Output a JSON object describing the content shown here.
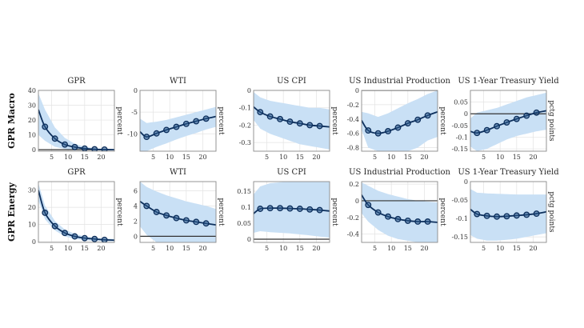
{
  "colors": {
    "band": "#c9e0f5",
    "line": "#0d2f5c",
    "grid": "#e3e3e3",
    "axis": "#8a8a8a",
    "zero_line": "#333333"
  },
  "chart_data": [
    {
      "type": "line",
      "row_label": "GPR Macro",
      "title": "GPR",
      "ylabel": "percent",
      "xlim": [
        1,
        24
      ],
      "xticks": [
        5,
        10,
        15,
        20
      ],
      "ylim": [
        -1,
        40
      ],
      "yticks": [
        0,
        10,
        20,
        30,
        40
      ],
      "grid": true,
      "zero_line": true,
      "x": [
        1,
        3,
        6,
        9,
        12,
        15,
        18,
        21,
        24
      ],
      "mean": [
        27,
        15.5,
        7.5,
        3.5,
        1.8,
        0.8,
        0.3,
        0.1,
        0
      ],
      "lower": [
        10,
        6,
        2,
        0.5,
        0,
        -0.3,
        -0.3,
        -0.3,
        -0.3
      ],
      "upper": [
        38,
        27,
        15,
        8,
        4,
        2,
        1,
        0.6,
        0.5
      ],
      "markers": [
        3,
        6,
        9,
        12,
        15,
        18,
        21
      ]
    },
    {
      "type": "line",
      "title": "WTI",
      "ylabel": "percent",
      "xlim": [
        1,
        24
      ],
      "xticks": [
        5,
        10,
        15,
        20
      ],
      "ylim": [
        -14,
        0
      ],
      "yticks": [
        -10,
        -5,
        0
      ],
      "grid": true,
      "zero_line": false,
      "x": [
        1,
        3,
        6,
        9,
        12,
        15,
        18,
        21,
        24
      ],
      "mean": [
        -9.5,
        -10.7,
        -9.9,
        -9.1,
        -8.4,
        -7.7,
        -7.1,
        -6.5,
        -6.0
      ],
      "lower": [
        -14,
        -14,
        -13,
        -12.2,
        -11.3,
        -10.5,
        -9.8,
        -9,
        -8.4
      ],
      "upper": [
        -6.5,
        -7.5,
        -7.2,
        -6.8,
        -6.2,
        -5.6,
        -5,
        -4.4,
        -3.8
      ],
      "markers": [
        3,
        6,
        9,
        12,
        15,
        18,
        21
      ]
    },
    {
      "type": "line",
      "title": "US CPI",
      "ylabel": "percent",
      "xlim": [
        1,
        24
      ],
      "xticks": [
        5,
        10,
        15,
        20
      ],
      "ylim": [
        -0.35,
        0
      ],
      "yticks": [
        -0.3,
        -0.2,
        -0.1,
        0
      ],
      "grid": true,
      "zero_line": false,
      "x": [
        1,
        3,
        6,
        9,
        12,
        15,
        18,
        21,
        24
      ],
      "mean": [
        -0.095,
        -0.125,
        -0.15,
        -0.165,
        -0.18,
        -0.19,
        -0.2,
        -0.205,
        -0.21
      ],
      "lower": [
        -0.17,
        -0.22,
        -0.25,
        -0.27,
        -0.29,
        -0.31,
        -0.32,
        -0.33,
        -0.34
      ],
      "upper": [
        -0.01,
        -0.04,
        -0.06,
        -0.07,
        -0.08,
        -0.09,
        -0.1,
        -0.1,
        -0.11
      ],
      "markers": [
        3,
        6,
        9,
        12,
        15,
        18,
        21
      ]
    },
    {
      "type": "line",
      "title": "US Industrial Production",
      "ylabel": "percent",
      "xlim": [
        1,
        24
      ],
      "xticks": [
        5,
        10,
        15,
        20
      ],
      "ylim": [
        -0.85,
        0
      ],
      "yticks": [
        -0.8,
        -0.6,
        -0.4,
        -0.2,
        0
      ],
      "grid": true,
      "zero_line": true,
      "x": [
        1,
        3,
        6,
        9,
        12,
        15,
        18,
        21,
        24
      ],
      "mean": [
        -0.42,
        -0.56,
        -0.6,
        -0.57,
        -0.52,
        -0.46,
        -0.41,
        -0.35,
        -0.3
      ],
      "lower": [
        -0.55,
        -0.8,
        -0.85,
        -0.85,
        -0.85,
        -0.85,
        -0.8,
        -0.7,
        -0.65
      ],
      "upper": [
        -0.3,
        -0.32,
        -0.37,
        -0.32,
        -0.25,
        -0.18,
        -0.12,
        -0.05,
        0
      ],
      "markers": [
        3,
        6,
        9,
        12,
        15,
        18,
        21
      ]
    },
    {
      "type": "line",
      "title": "US 1-Year Treasury Yield",
      "ylabel": "pctg points",
      "xlim": [
        1,
        24
      ],
      "xticks": [
        5,
        10,
        15,
        20
      ],
      "ylim": [
        -0.16,
        0.1
      ],
      "yticks": [
        -0.15,
        -0.1,
        -0.05,
        0,
        0.05
      ],
      "grid": true,
      "zero_line": true,
      "x": [
        1,
        3,
        6,
        9,
        12,
        15,
        18,
        21,
        24
      ],
      "mean": [
        -0.075,
        -0.082,
        -0.07,
        -0.053,
        -0.037,
        -0.022,
        -0.008,
        0.005,
        0.013
      ],
      "lower": [
        -0.14,
        -0.16,
        -0.15,
        -0.13,
        -0.11,
        -0.095,
        -0.085,
        -0.075,
        -0.068
      ],
      "upper": [
        -0.02,
        0.005,
        0.015,
        0.025,
        0.04,
        0.055,
        0.07,
        0.08,
        0.09
      ],
      "markers": [
        3,
        6,
        9,
        12,
        15,
        18,
        21
      ]
    },
    {
      "type": "line",
      "row_label": "GPR Energy",
      "title": "GPR",
      "ylabel": "percent",
      "xlim": [
        1,
        24
      ],
      "xticks": [
        5,
        10,
        15,
        20
      ],
      "ylim": [
        -0.5,
        35
      ],
      "yticks": [
        0,
        10,
        20,
        30
      ],
      "grid": true,
      "zero_line": false,
      "x": [
        1,
        3,
        6,
        9,
        12,
        15,
        18,
        21,
        24
      ],
      "mean": [
        30,
        16.8,
        9,
        5,
        3,
        2,
        1.5,
        1,
        0.8
      ],
      "lower": [
        24,
        13,
        6.5,
        3,
        1.5,
        0.8,
        0.3,
        0.2,
        0.1
      ],
      "upper": [
        34,
        21,
        12,
        7,
        4.5,
        3,
        2.2,
        1.8,
        1.5
      ],
      "markers": [
        3,
        6,
        9,
        12,
        15,
        18,
        21
      ]
    },
    {
      "type": "line",
      "title": "WTI",
      "ylabel": "percent",
      "xlim": [
        1,
        24
      ],
      "xticks": [
        5,
        10,
        15,
        20
      ],
      "ylim": [
        -0.8,
        7.2
      ],
      "yticks": [
        0,
        2,
        4,
        6
      ],
      "grid": true,
      "zero_line": true,
      "x": [
        1,
        3,
        6,
        9,
        12,
        15,
        18,
        21,
        24
      ],
      "mean": [
        4.6,
        4,
        3.2,
        2.75,
        2.4,
        2.1,
        1.9,
        1.7,
        1.5
      ],
      "lower": [
        1.3,
        0.2,
        -0.8,
        -0.8,
        -0.8,
        -0.8,
        -0.8,
        -0.8,
        -0.8
      ],
      "upper": [
        7.2,
        6.5,
        5.9,
        5.4,
        5,
        4.6,
        4.3,
        4,
        3.6
      ],
      "markers": [
        3,
        6,
        9,
        12,
        15,
        18,
        21
      ]
    },
    {
      "type": "line",
      "title": "US CPI",
      "ylabel": "percent",
      "xlim": [
        1,
        24
      ],
      "xticks": [
        5,
        10,
        15,
        20
      ],
      "ylim": [
        -0.01,
        0.18
      ],
      "yticks": [
        0,
        0.05,
        0.1,
        0.15
      ],
      "grid": true,
      "zero_line": true,
      "x": [
        1,
        3,
        6,
        9,
        12,
        15,
        18,
        21,
        24
      ],
      "mean": [
        0.08,
        0.095,
        0.097,
        0.097,
        0.096,
        0.095,
        0.093,
        0.091,
        0.088
      ],
      "lower": [
        0.02,
        0.025,
        0.022,
        0.02,
        0.018,
        0.015,
        0.012,
        0.008,
        0.005
      ],
      "upper": [
        0.14,
        0.165,
        0.175,
        0.178,
        0.18,
        0.18,
        0.18,
        0.18,
        0.18
      ],
      "markers": [
        3,
        6,
        9,
        12,
        15,
        18,
        21
      ]
    },
    {
      "type": "line",
      "title": "US Industrial Production",
      "ylabel": "percent",
      "xlim": [
        1,
        24
      ],
      "xticks": [
        5,
        10,
        15,
        20
      ],
      "ylim": [
        -0.5,
        0.23
      ],
      "yticks": [
        -0.4,
        -0.2,
        0,
        0.2
      ],
      "grid": true,
      "zero_line": true,
      "x": [
        1,
        3,
        6,
        9,
        12,
        15,
        18,
        21,
        24
      ],
      "mean": [
        0.07,
        -0.05,
        -0.14,
        -0.19,
        -0.22,
        -0.24,
        -0.25,
        -0.25,
        -0.26
      ],
      "lower": [
        -0.15,
        -0.25,
        -0.35,
        -0.42,
        -0.46,
        -0.48,
        -0.5,
        -0.5,
        -0.5
      ],
      "upper": [
        0.22,
        0.18,
        0.12,
        0.08,
        0.05,
        0.02,
        0,
        -0.01,
        -0.02
      ],
      "markers": [
        3,
        6,
        9,
        12,
        15,
        18,
        21
      ]
    },
    {
      "type": "line",
      "title": "US 1-Year Treasury Yield",
      "ylabel": "pctg points",
      "xlim": [
        1,
        24
      ],
      "xticks": [
        5,
        10,
        15,
        20
      ],
      "ylim": [
        -0.165,
        0
      ],
      "yticks": [
        -0.15,
        -0.1,
        -0.05,
        0
      ],
      "grid": true,
      "zero_line": false,
      "x": [
        1,
        3,
        6,
        9,
        12,
        15,
        18,
        21,
        24
      ],
      "mean": [
        -0.075,
        -0.088,
        -0.093,
        -0.095,
        -0.094,
        -0.092,
        -0.09,
        -0.087,
        -0.082
      ],
      "lower": [
        -0.145,
        -0.155,
        -0.16,
        -0.16,
        -0.158,
        -0.155,
        -0.15,
        -0.145,
        -0.14
      ],
      "upper": [
        -0.02,
        -0.03,
        -0.032,
        -0.033,
        -0.034,
        -0.035,
        -0.035,
        -0.035,
        -0.035
      ],
      "markers": [
        3,
        6,
        9,
        12,
        15,
        18,
        21
      ]
    }
  ]
}
